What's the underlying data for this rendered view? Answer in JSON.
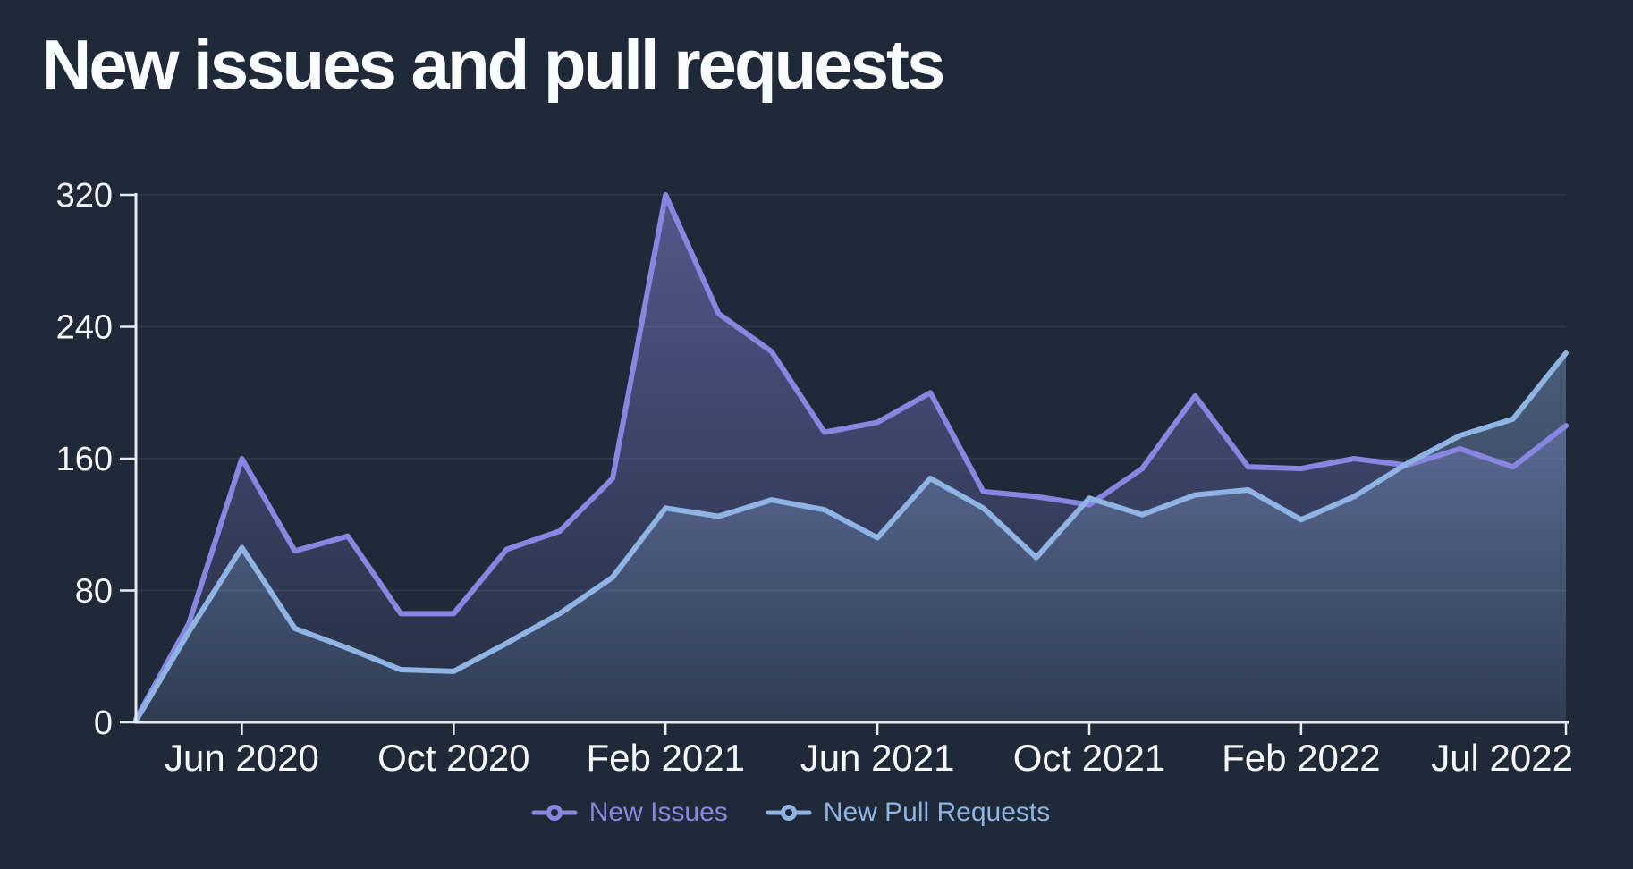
{
  "title": "New issues and pull requests",
  "legend": [
    {
      "label": "New Issues",
      "color": "#8886e0"
    },
    {
      "label": "New Pull Requests",
      "color": "#8fb4e4"
    }
  ],
  "colors": {
    "background": "#1f2938",
    "axis": "#e7ecf3",
    "tick_label": "#f5f7fa",
    "grid": "rgba(154,176,208,0.13)",
    "issues": "#8886e0",
    "pull_requests": "#8fb4e4"
  },
  "chart_data": {
    "type": "area",
    "title": "New issues and pull requests",
    "xlabel": "",
    "ylabel": "",
    "ylim": [
      0,
      320
    ],
    "y_ticks": [
      0,
      80,
      160,
      240,
      320
    ],
    "grid": true,
    "legend_position": "bottom",
    "x": [
      "Apr 2020",
      "May 2020",
      "Jun 2020",
      "Jul 2020",
      "Aug 2020",
      "Sep 2020",
      "Oct 2020",
      "Nov 2020",
      "Dec 2020",
      "Jan 2021",
      "Feb 2021",
      "Mar 2021",
      "Apr 2021",
      "May 2021",
      "Jun 2021",
      "Jul 2021",
      "Aug 2021",
      "Sep 2021",
      "Oct 2021",
      "Nov 2021",
      "Dec 2021",
      "Jan 2022",
      "Feb 2022",
      "Mar 2022",
      "Apr 2022",
      "May 2022",
      "Jun 2022",
      "Jul 2022"
    ],
    "x_tick_labels": [
      "Jun 2020",
      "Oct 2020",
      "Feb 2021",
      "Jun 2021",
      "Oct 2021",
      "Feb 2022",
      "Jul 2022"
    ],
    "x_tick_indices": [
      2,
      6,
      10,
      14,
      18,
      22,
      27
    ],
    "series": [
      {
        "name": "New Issues",
        "color": "#8886e0",
        "values": [
          2,
          60,
          160,
          104,
          113,
          66,
          66,
          105,
          116,
          148,
          320,
          248,
          225,
          176,
          182,
          200,
          140,
          137,
          132,
          154,
          198,
          155,
          154,
          160,
          156,
          166,
          155,
          180
        ]
      },
      {
        "name": "New Pull Requests",
        "color": "#8fb4e4",
        "values": [
          1,
          55,
          106,
          57,
          45,
          32,
          31,
          48,
          66,
          88,
          130,
          125,
          135,
          129,
          112,
          148,
          130,
          100,
          136,
          126,
          138,
          141,
          123,
          137,
          157,
          174,
          184,
          224
        ]
      }
    ]
  }
}
